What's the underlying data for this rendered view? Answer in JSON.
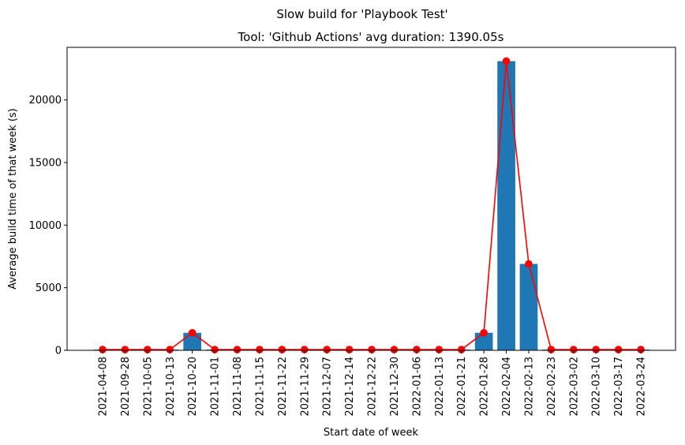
{
  "chart_data": {
    "type": "bar",
    "suptitle": "Slow build for 'Playbook Test'",
    "title": "Tool: 'Github Actions' avg duration: 1390.05s",
    "xlabel": "Start date of week",
    "ylabel": "Average build time of that week (s)",
    "categories": [
      "2021-04-08",
      "2021-09-28",
      "2021-10-05",
      "2021-10-13",
      "2021-10-20",
      "2021-11-01",
      "2021-11-08",
      "2021-11-15",
      "2021-11-22",
      "2021-11-29",
      "2021-12-07",
      "2021-12-14",
      "2021-12-22",
      "2021-12-30",
      "2022-01-06",
      "2022-01-13",
      "2022-01-21",
      "2022-01-28",
      "2022-02-04",
      "2022-02-13",
      "2022-02-23",
      "2022-03-02",
      "2022-03-10",
      "2022-03-17",
      "2022-03-24"
    ],
    "values": [
      60,
      60,
      60,
      60,
      1400,
      60,
      60,
      60,
      60,
      60,
      60,
      60,
      60,
      60,
      60,
      60,
      60,
      1400,
      23100,
      6900,
      60,
      60,
      60,
      60,
      60
    ],
    "ylim": [
      0,
      24200
    ],
    "yticks": [
      0,
      5000,
      10000,
      15000,
      20000
    ],
    "bar_color": "#1f77b4",
    "line_color": "#ff0000",
    "grid": false,
    "overlay": "line-with-markers"
  }
}
